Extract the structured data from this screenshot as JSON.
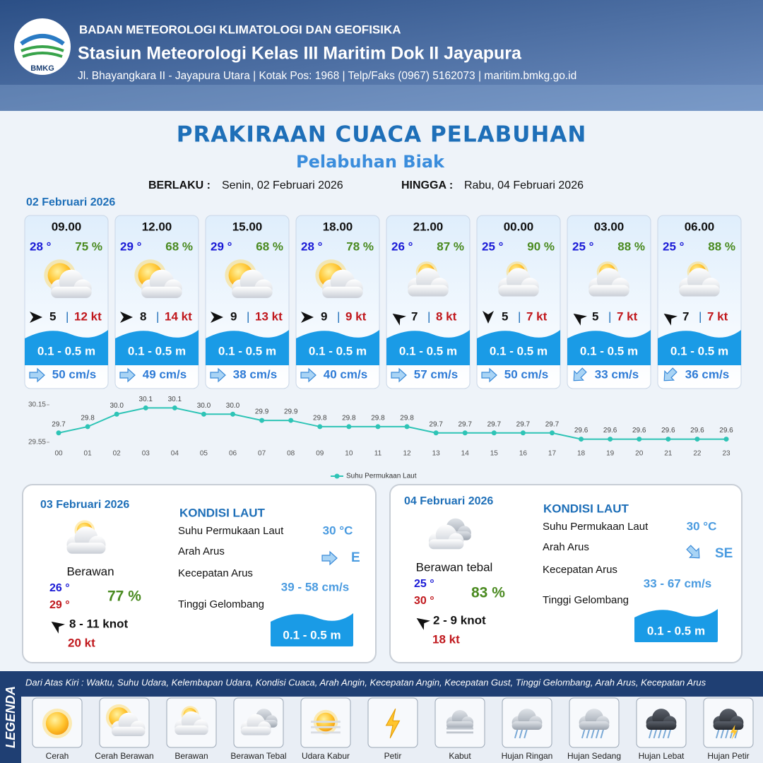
{
  "header": {
    "logo_text": "BMKG",
    "org": "BADAN METEOROLOGI KLIMATOLOGI DAN GEOFISIKA",
    "station": "Stasiun Meteorologi Kelas III Maritim Dok II Jayapura",
    "address": "Jl. Bhayangkara II - Jayapura Utara | Kotak Pos: 1968 | Telp/Faks (0967) 5162073 | maritim.bmkg.go.id"
  },
  "title": "PRAKIRAAN CUACA PELABUHAN",
  "subtitle": "Pelabuhan Biak",
  "validity": {
    "from_label": "BERLAKU :",
    "from": "Senin, 02 Februari 2026",
    "to_label": "HINGGA :",
    "to": "Rabu, 04 Februari 2026"
  },
  "day1": {
    "date": "02 Februari 2026",
    "forecasts": [
      {
        "time": "09.00",
        "temp": "28 °",
        "humidity": "75 %",
        "wind": "5",
        "gust": "12 kt",
        "wave": "0.1 - 0.5 m",
        "current": "50 cm/s"
      },
      {
        "time": "12.00",
        "temp": "29 °",
        "humidity": "68 %",
        "wind": "8",
        "gust": "14 kt",
        "wave": "0.1 - 0.5 m",
        "current": "49 cm/s"
      },
      {
        "time": "15.00",
        "temp": "29 °",
        "humidity": "68 %",
        "wind": "9",
        "gust": "13 kt",
        "wave": "0.1 - 0.5 m",
        "current": "38 cm/s"
      },
      {
        "time": "18.00",
        "temp": "28 °",
        "humidity": "78 %",
        "wind": "9",
        "gust": "9 kt",
        "wave": "0.1 - 0.5 m",
        "current": "40 cm/s"
      },
      {
        "time": "21.00",
        "temp": "26 °",
        "humidity": "87 %",
        "wind": "7",
        "gust": "8 kt",
        "wave": "0.1 - 0.5 m",
        "current": "57 cm/s"
      },
      {
        "time": "00.00",
        "temp": "25 °",
        "humidity": "90 %",
        "wind": "5",
        "gust": "7 kt",
        "wave": "0.1 - 0.5 m",
        "current": "50 cm/s"
      },
      {
        "time": "03.00",
        "temp": "25 °",
        "humidity": "88 %",
        "wind": "5",
        "gust": "7 kt",
        "wave": "0.1 - 0.5 m",
        "current": "33 cm/s"
      },
      {
        "time": "06.00",
        "temp": "25 °",
        "humidity": "88 %",
        "wind": "7",
        "gust": "7 kt",
        "wave": "0.1 - 0.5 m",
        "current": "36 cm/s"
      }
    ]
  },
  "chart_data": {
    "type": "line",
    "categories": [
      "00",
      "01",
      "02",
      "03",
      "04",
      "05",
      "06",
      "07",
      "08",
      "09",
      "10",
      "11",
      "12",
      "13",
      "14",
      "15",
      "16",
      "17",
      "18",
      "19",
      "20",
      "21",
      "22",
      "23"
    ],
    "series": [
      {
        "name": "Suhu Permukaan Laut",
        "color": "#2ec4b6",
        "values": [
          29.7,
          29.8,
          30.0,
          30.1,
          30.1,
          30.0,
          30.0,
          29.9,
          29.9,
          29.8,
          29.8,
          29.8,
          29.8,
          29.7,
          29.7,
          29.7,
          29.7,
          29.7,
          29.6,
          29.6,
          29.6,
          29.6,
          29.6,
          29.6
        ],
        "value_labels": [
          "29.7",
          "29.8",
          "30.0",
          "30.1",
          "30.1",
          "30.0",
          "30.0",
          "29.9",
          "29.9",
          "29.8",
          "29.8",
          "29.8",
          "29.8",
          "29.7",
          "29.7",
          "29.7",
          "29.7",
          "29.7",
          "29.6",
          "29.6",
          "29.6",
          "29.6",
          "29.6",
          "29.6"
        ]
      }
    ],
    "ylim": [
      29.55,
      30.15
    ],
    "yticks": [
      29.55,
      30.15
    ],
    "grid": false,
    "legend": "bottom"
  },
  "days": [
    {
      "date": "03 Februari 2026",
      "condition": "Berawan",
      "temp_min": "26 °",
      "temp_max": "29 °",
      "humidity": "77 %",
      "wind": "8 - 11 knot",
      "gust": "20 kt",
      "sea_heading": "KONDISI LAUT",
      "sea": {
        "sst_label": "Suhu Permukaan Laut",
        "sst": "30 °C",
        "dir_label": "Arah Arus",
        "dir": "E",
        "speed_label": "Kecepatan Arus",
        "speed": "39 - 58 cm/s",
        "wave_label": "Tinggi Gelombang",
        "wave": "0.1 - 0.5 m"
      }
    },
    {
      "date": "04 Februari 2026",
      "condition": "Berawan tebal",
      "temp_min": "25 °",
      "temp_max": "30 °",
      "humidity": "83 %",
      "wind": "2 - 9 knot",
      "gust": "18 kt",
      "sea_heading": "KONDISI LAUT",
      "sea": {
        "sst_label": "Suhu Permukaan Laut",
        "sst": "30 °C",
        "dir_label": "Arah Arus",
        "dir": "SE",
        "speed_label": "Kecepatan Arus",
        "speed": "33 - 67 cm/s",
        "wave_label": "Tinggi Gelombang",
        "wave": "0.1 - 0.5 m"
      }
    }
  ],
  "legend": {
    "title": "LEGENDA",
    "description": "Dari Atas Kiri : Waktu, Suhu Udara, Kelembapan Udara, Kondisi Cuaca, Arah Angin, Kecepatan Angin, Kecepatan Gust, Tinggi Gelombang, Arah Arus, Kecepatan Arus",
    "items": [
      "Cerah",
      "Cerah Berawan",
      "Berawan",
      "Berawan Tebal",
      "Udara Kabur",
      "Petir",
      "Kabut",
      "Hujan Ringan",
      "Hujan Sedang",
      "Hujan Lebat",
      "Hujan Petir"
    ]
  }
}
